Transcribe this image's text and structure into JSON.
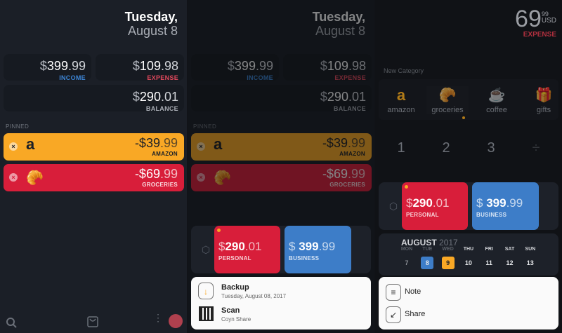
{
  "date": {
    "weekday": "Tuesday,",
    "day": "August 8"
  },
  "summary": {
    "income": {
      "cur": "$",
      "int": "399",
      "dec": ".99",
      "label": "INCOME"
    },
    "expense": {
      "cur": "$",
      "int": "109",
      "dec": ".98",
      "label": "EXPENSE"
    },
    "balance": {
      "cur": "$",
      "int": "290",
      "dec": ".01",
      "label": "BALANCE"
    }
  },
  "pinned": {
    "header": "PINNED",
    "items": [
      {
        "amount_int": "-$39",
        "amount_dec": ".99",
        "label": "AMAZON",
        "icon": "amazon-logo",
        "color": "#f9a825"
      },
      {
        "amount_int": "-$69",
        "amount_dec": ".99",
        "label": "GROCERIES",
        "icon": "croissant",
        "color": "#d81e3a"
      }
    ]
  },
  "colors": {
    "income": "#3d86d6",
    "expense": "#e0485c",
    "personal": "#d81e3a",
    "business": "#3d7dc8",
    "accent": "#f9a825"
  },
  "wallets": [
    {
      "cur": "$",
      "int": "290",
      "dec": ".01",
      "label": "PERSONAL"
    },
    {
      "cur": "$ ",
      "int": "399",
      "dec": ".99",
      "label": "BUSINESS"
    }
  ],
  "sheet2": {
    "items": [
      {
        "title": "Backup",
        "subtitle": "Tuesday, August 08, 2017",
        "icon": "download-icon"
      },
      {
        "title": "Scan",
        "subtitle": "Coyn Share",
        "icon": "qr-code-icon"
      }
    ]
  },
  "entry": {
    "amount": "69",
    "cents": "99",
    "currency": "USD",
    "type": "EXPENSE"
  },
  "categories": {
    "header": "New Category",
    "items": [
      {
        "name": "amazon",
        "icon": "amazon-logo"
      },
      {
        "name": "groceries",
        "icon": "croissant"
      },
      {
        "name": "coffee",
        "icon": "coffee-cup"
      },
      {
        "name": "gifts",
        "icon": "gift"
      }
    ]
  },
  "keypad": [
    "1",
    "2",
    "3",
    "÷"
  ],
  "calendar": {
    "month": "AUGUST",
    "year": "2017",
    "days": [
      {
        "n": "MON",
        "d": "7"
      },
      {
        "n": "TUE",
        "d": "8"
      },
      {
        "n": "WED",
        "d": "9"
      },
      {
        "n": "THU",
        "d": "10"
      },
      {
        "n": "FRI",
        "d": "11"
      },
      {
        "n": "SAT",
        "d": "12"
      },
      {
        "n": "SUN",
        "d": "13"
      }
    ]
  },
  "sheet3": {
    "items": [
      {
        "title": "Note",
        "icon": "note-icon"
      },
      {
        "title": "Share",
        "icon": "share-arrow-icon"
      }
    ]
  }
}
